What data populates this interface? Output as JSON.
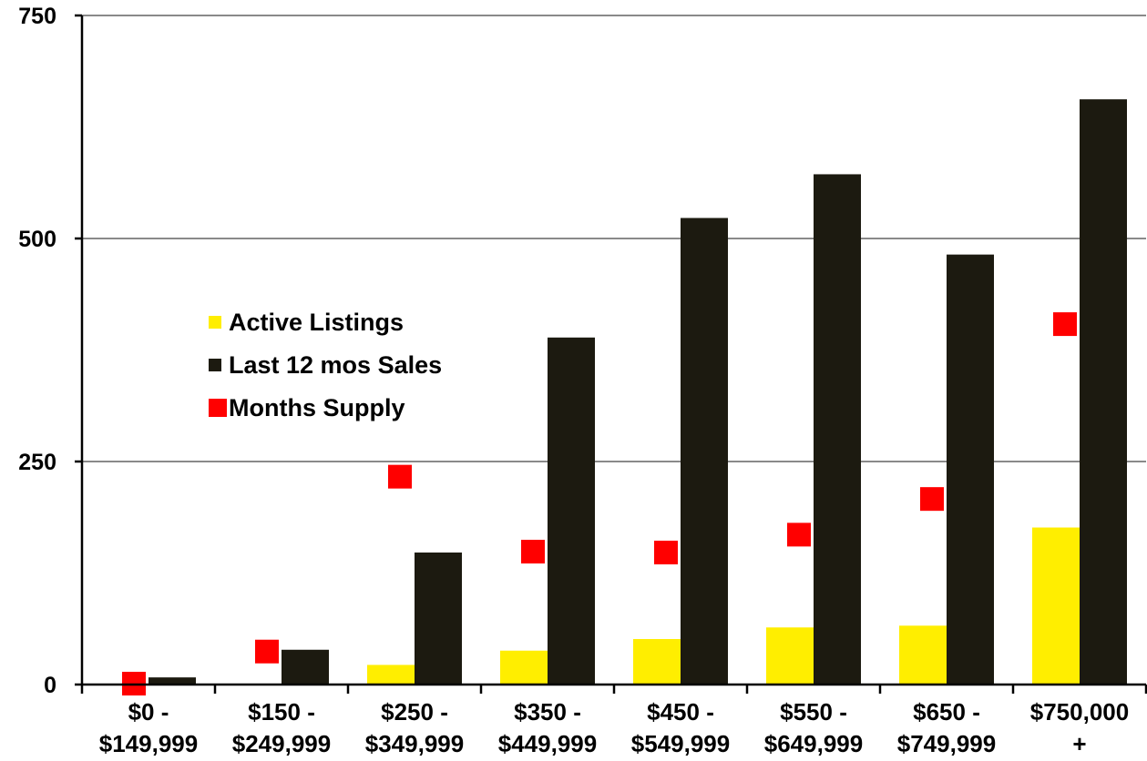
{
  "chart_data": {
    "type": "bar",
    "categories": [
      [
        "$0 -",
        "$149,999"
      ],
      [
        "$150 -",
        "$249,999"
      ],
      [
        "$250 -",
        "$349,999"
      ],
      [
        "$350 -",
        "$449,999"
      ],
      [
        "$450 -",
        "$549,999"
      ],
      [
        "$550 -",
        "$649,999"
      ],
      [
        "$650 -",
        "$749,999"
      ],
      [
        "$750,000",
        "+"
      ]
    ],
    "series": [
      {
        "name": "Active Listings",
        "kind": "bar",
        "color": "#ffee00",
        "values": [
          0,
          0,
          22,
          38,
          51,
          64,
          66,
          176
        ]
      },
      {
        "name": "Last 12 mos Sales",
        "kind": "bar",
        "color": "#1c1a10",
        "values": [
          8,
          39,
          148,
          389,
          523,
          572,
          482,
          656
        ]
      },
      {
        "name": "Months Supply",
        "kind": "marker",
        "color": "#ff0000",
        "values": [
          1,
          37,
          233,
          149,
          148,
          168,
          208,
          404
        ]
      }
    ],
    "yticks": [
      0,
      250,
      500,
      750
    ],
    "ylim": [
      0,
      750
    ],
    "grid": true,
    "legend_position": "left-center"
  }
}
